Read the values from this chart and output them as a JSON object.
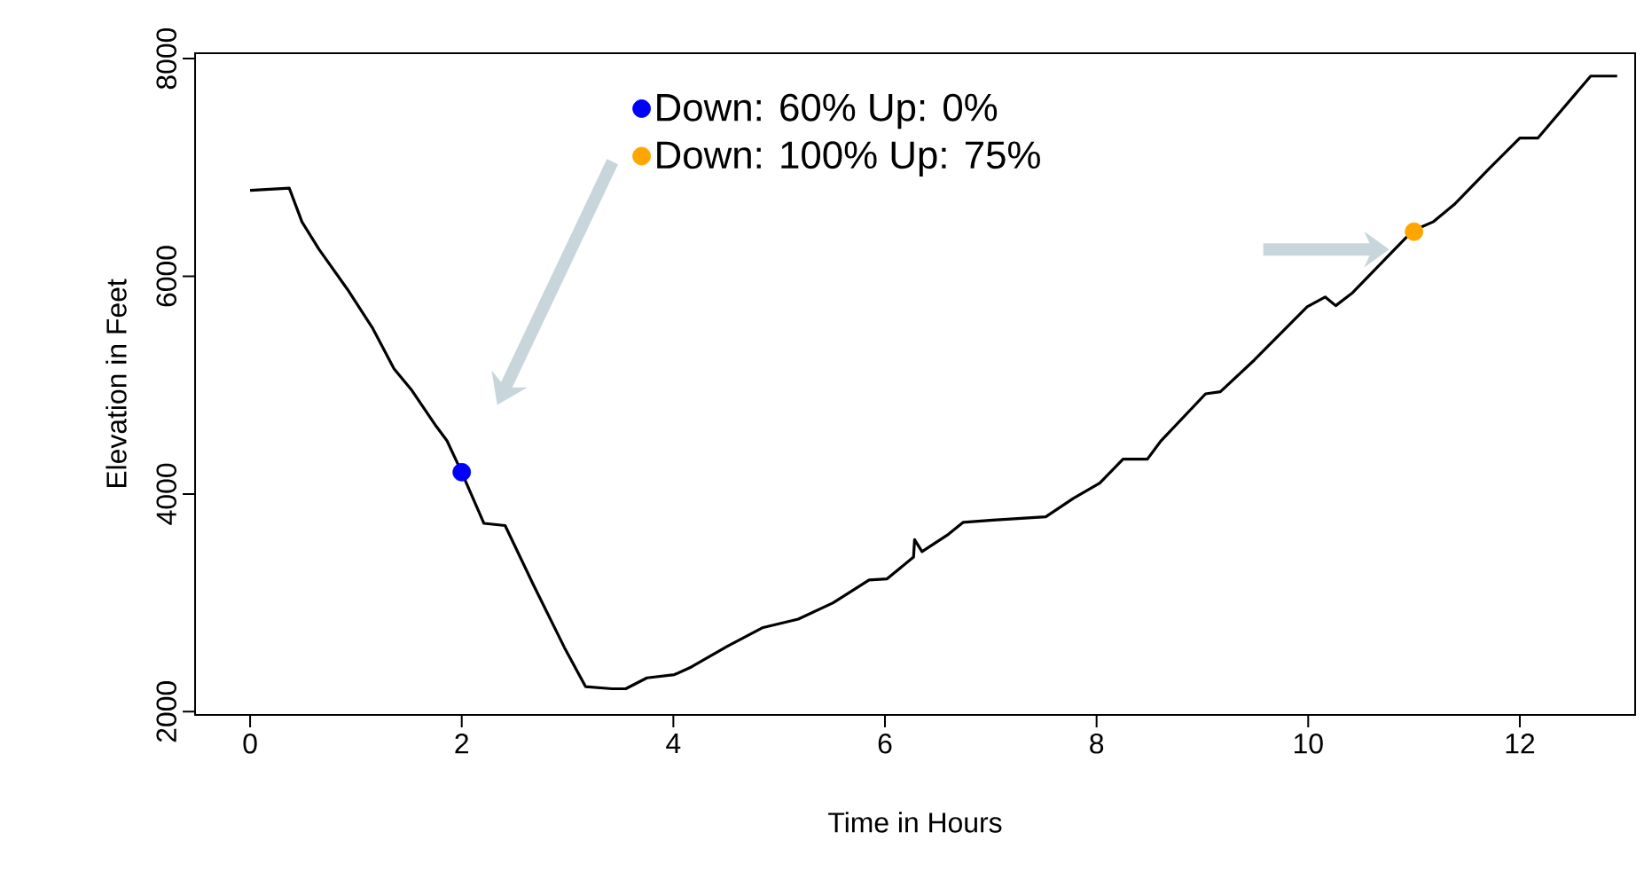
{
  "chart_data": {
    "type": "line",
    "xlabel": "Time in Hours",
    "ylabel": "Elevation in Feet",
    "xlim": [
      -0.52,
      13.09
    ],
    "ylim": [
      1970,
      8050
    ],
    "xticks": [
      0,
      2,
      4,
      6,
      8,
      10,
      12
    ],
    "yticks": [
      2000,
      4000,
      6000,
      8000
    ],
    "grid": false,
    "legend": "top",
    "line_style": "solid",
    "series": [
      {
        "color": "#000000",
        "marker": "none",
        "x": [
          0,
          0.37,
          0.49,
          0.65,
          0.92,
          1.16,
          1.36,
          1.53,
          1.76,
          1.86,
          1.99,
          2.21,
          2.41,
          2.68,
          2.97,
          3.17,
          3.42,
          3.55,
          3.75,
          4.01,
          4.17,
          4.51,
          4.84,
          5.18,
          5.51,
          5.85,
          6.02,
          6.27,
          6.28,
          6.35,
          6.6,
          6.74,
          7.02,
          7.52,
          7.78,
          8.03,
          8.25,
          8.48,
          8.61,
          9.03,
          9.17,
          9.49,
          9.99,
          10.16,
          10.26,
          10.42,
          10.99,
          11.18,
          11.38,
          11.71,
          12.0,
          12.17,
          12.67,
          12.92
        ],
        "values": [
          6790,
          6810,
          6500,
          6250,
          5880,
          5520,
          5150,
          4950,
          4620,
          4490,
          4220,
          3730,
          3710,
          3160,
          2590,
          2230,
          2210,
          2210,
          2310,
          2340,
          2410,
          2600,
          2770,
          2850,
          3000,
          3210,
          3220,
          3420,
          3580,
          3470,
          3630,
          3740,
          3760,
          3790,
          3960,
          4100,
          4320,
          4320,
          4490,
          4920,
          4940,
          5230,
          5720,
          5810,
          5730,
          5850,
          6420,
          6500,
          6660,
          6990,
          7270,
          7270,
          7840,
          7840
        ]
      },
      {
        "type": "scatter",
        "name": "Down: 60% Up: 0%",
        "color": "#0000ff",
        "marker": "circle",
        "x": [
          2
        ],
        "values": [
          4200
        ]
      },
      {
        "type": "scatter",
        "name": "Down: 100% Up: 75%",
        "color": "#ffa500",
        "marker": "circle",
        "x": [
          11
        ],
        "values": [
          6410
        ]
      }
    ]
  }
}
